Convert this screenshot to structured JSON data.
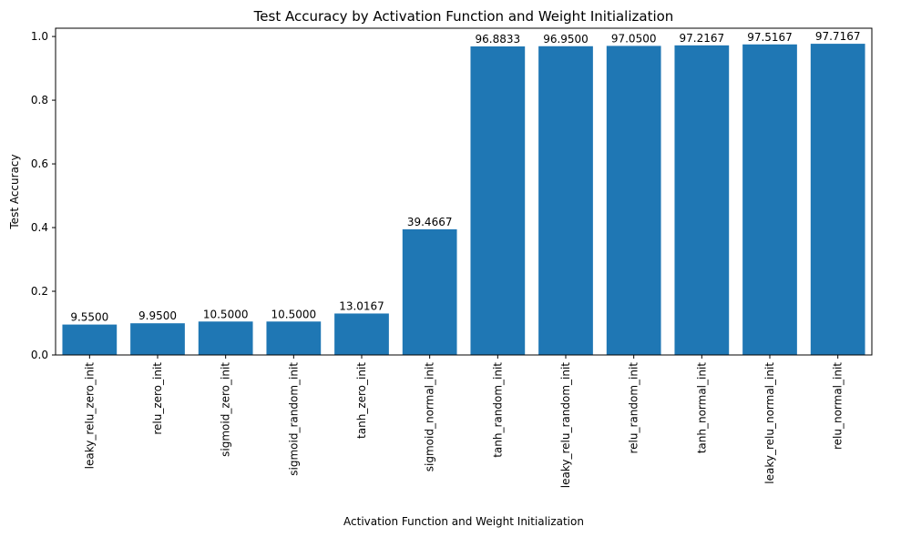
{
  "chart_data": {
    "type": "bar",
    "title": "Test Accuracy by Activation Function and Weight Initialization",
    "xlabel": "Activation Function and Weight Initialization",
    "ylabel": "Test Accuracy",
    "categories": [
      "leaky_relu_zero_init",
      "relu_zero_init",
      "sigmoid_zero_init",
      "sigmoid_random_init",
      "tanh_zero_init",
      "sigmoid_normal_init",
      "tanh_random_init",
      "leaky_relu_random_init",
      "relu_random_init",
      "tanh_normal_init",
      "leaky_relu_normal_init",
      "relu_normal_init"
    ],
    "values": [
      0.0955,
      0.0995,
      0.105,
      0.105,
      0.130167,
      0.394667,
      0.968833,
      0.9695,
      0.9705,
      0.972167,
      0.975167,
      0.977167
    ],
    "data_labels": [
      "9.5500",
      "9.9500",
      "10.5000",
      "10.5000",
      "13.0167",
      "39.4667",
      "96.8833",
      "96.9500",
      "97.0500",
      "97.2167",
      "97.5167",
      "97.7167"
    ],
    "yticks": [
      0.0,
      0.2,
      0.4,
      0.6,
      0.8,
      1.0
    ],
    "ytick_labels": [
      "0.0",
      "0.2",
      "0.4",
      "0.6",
      "0.8",
      "1.0"
    ],
    "ylim": [
      0,
      1.026
    ],
    "grid": false,
    "bar_color": "#1f77b4"
  }
}
